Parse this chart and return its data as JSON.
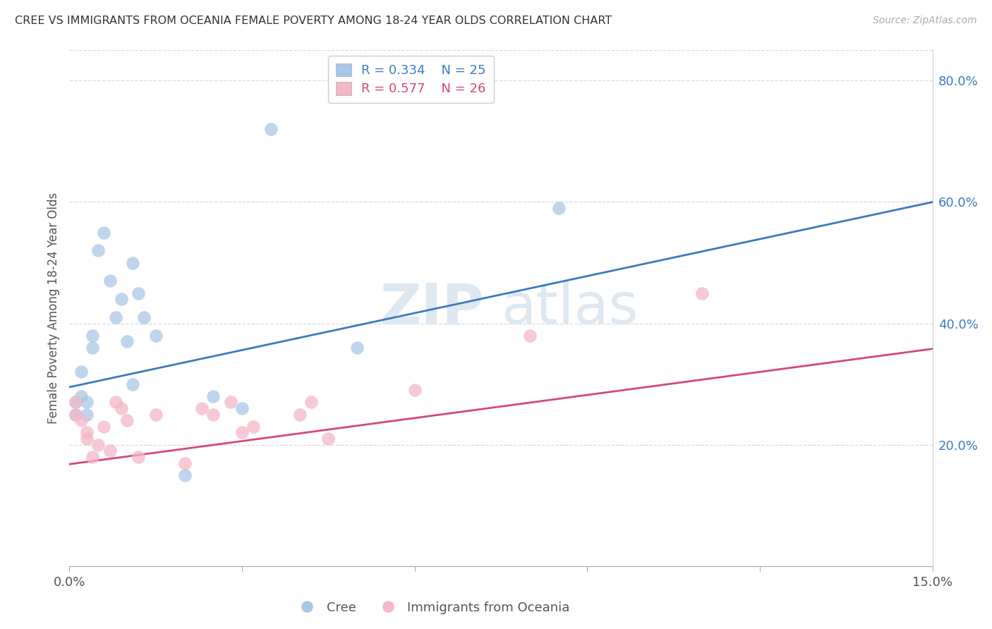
{
  "title": "CREE VS IMMIGRANTS FROM OCEANIA FEMALE POVERTY AMONG 18-24 YEAR OLDS CORRELATION CHART",
  "source": "Source: ZipAtlas.com",
  "ylabel": "Female Poverty Among 18-24 Year Olds",
  "xlim": [
    0.0,
    0.15
  ],
  "ylim": [
    0.0,
    0.85
  ],
  "yticks_right": [
    0.2,
    0.4,
    0.6,
    0.8
  ],
  "ytick_right_labels": [
    "20.0%",
    "40.0%",
    "60.0%",
    "80.0%"
  ],
  "grid_color": "#d8d8d8",
  "background_color": "#ffffff",
  "watermark_zip": "ZIP",
  "watermark_atlas": "atlas",
  "legend_R1": "R = 0.334",
  "legend_N1": "N = 25",
  "legend_R2": "R = 0.577",
  "legend_N2": "N = 26",
  "blue_color": "#a8c8e8",
  "blue_line_color": "#3a7bbf",
  "pink_color": "#f4b8c8",
  "pink_line_color": "#d44878",
  "blue_intercept": 0.295,
  "blue_slope": 2.033,
  "pink_intercept": 0.168,
  "pink_slope": 1.267,
  "cree_x": [
    0.001,
    0.001,
    0.002,
    0.002,
    0.003,
    0.003,
    0.004,
    0.004,
    0.005,
    0.006,
    0.007,
    0.008,
    0.009,
    0.01,
    0.011,
    0.011,
    0.012,
    0.013,
    0.015,
    0.02,
    0.025,
    0.03,
    0.035,
    0.05,
    0.085
  ],
  "cree_y": [
    0.27,
    0.25,
    0.32,
    0.28,
    0.25,
    0.27,
    0.38,
    0.36,
    0.52,
    0.55,
    0.47,
    0.41,
    0.44,
    0.37,
    0.3,
    0.5,
    0.45,
    0.41,
    0.38,
    0.15,
    0.28,
    0.26,
    0.72,
    0.36,
    0.59
  ],
  "oceania_x": [
    0.001,
    0.001,
    0.002,
    0.003,
    0.003,
    0.004,
    0.005,
    0.006,
    0.007,
    0.008,
    0.009,
    0.01,
    0.012,
    0.015,
    0.02,
    0.023,
    0.025,
    0.028,
    0.03,
    0.032,
    0.04,
    0.042,
    0.045,
    0.06,
    0.08,
    0.11
  ],
  "oceania_y": [
    0.25,
    0.27,
    0.24,
    0.22,
    0.21,
    0.18,
    0.2,
    0.23,
    0.19,
    0.27,
    0.26,
    0.24,
    0.18,
    0.25,
    0.17,
    0.26,
    0.25,
    0.27,
    0.22,
    0.23,
    0.25,
    0.27,
    0.21,
    0.29,
    0.38,
    0.45
  ]
}
